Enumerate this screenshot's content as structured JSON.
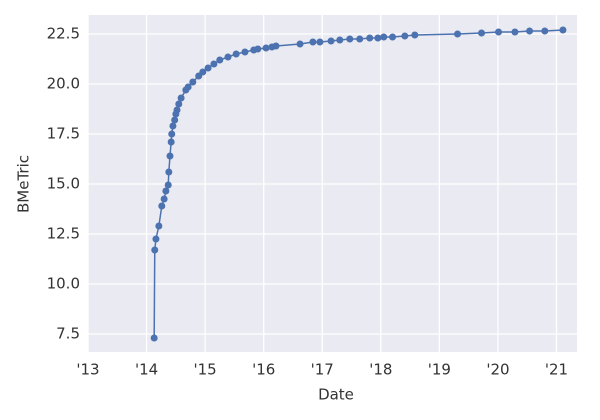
{
  "chart_data": {
    "type": "line",
    "xlabel": "Date",
    "ylabel": "BMeTric",
    "x": [
      2014.13,
      2014.14,
      2014.16,
      2014.21,
      2014.26,
      2014.3,
      2014.33,
      2014.37,
      2014.38,
      2014.4,
      2014.42,
      2014.43,
      2014.45,
      2014.48,
      2014.5,
      2014.52,
      2014.55,
      2014.59,
      2014.67,
      2014.71,
      2014.79,
      2014.89,
      2014.96,
      2015.05,
      2015.15,
      2015.25,
      2015.39,
      2015.53,
      2015.68,
      2015.83,
      2015.9,
      2016.04,
      2016.14,
      2016.21,
      2016.62,
      2016.84,
      2016.96,
      2017.15,
      2017.3,
      2017.47,
      2017.64,
      2017.81,
      2017.95,
      2018.05,
      2018.2,
      2018.41,
      2018.58,
      2019.31,
      2019.72,
      2020.01,
      2020.29,
      2020.54,
      2020.8,
      2021.11
    ],
    "series": [
      {
        "name": "BMeTric",
        "color": "#4c72b0",
        "values": [
          7.3,
          11.7,
          12.25,
          12.9,
          13.9,
          14.25,
          14.65,
          14.95,
          15.6,
          16.4,
          17.1,
          17.5,
          17.9,
          18.2,
          18.5,
          18.7,
          19.0,
          19.3,
          19.7,
          19.85,
          20.1,
          20.4,
          20.6,
          20.8,
          21.0,
          21.2,
          21.35,
          21.5,
          21.6,
          21.7,
          21.75,
          21.8,
          21.85,
          21.9,
          22.0,
          22.1,
          22.1,
          22.15,
          22.2,
          22.25,
          22.25,
          22.3,
          22.3,
          22.35,
          22.35,
          22.4,
          22.45,
          22.5,
          22.55,
          22.6,
          22.6,
          22.65,
          22.65,
          22.7
        ]
      }
    ],
    "xlim": [
      2013.0,
      2021.35
    ],
    "xticks": [
      {
        "value": 2013,
        "label": "'13"
      },
      {
        "value": 2014,
        "label": "'14"
      },
      {
        "value": 2015,
        "label": "'15"
      },
      {
        "value": 2016,
        "label": "'16"
      },
      {
        "value": 2017,
        "label": "'17"
      },
      {
        "value": 2018,
        "label": "'18"
      },
      {
        "value": 2019,
        "label": "'19"
      },
      {
        "value": 2020,
        "label": "'20"
      },
      {
        "value": 2021,
        "label": "'21"
      }
    ],
    "ylim": [
      6.6,
      23.45
    ],
    "yticks": [
      7.5,
      {
        "value": 10,
        "label": "10.0"
      },
      12.5,
      {
        "value": 15,
        "label": "15.0"
      },
      17.5,
      {
        "value": 20,
        "label": "20.0"
      },
      22.5
    ],
    "grid": true
  }
}
